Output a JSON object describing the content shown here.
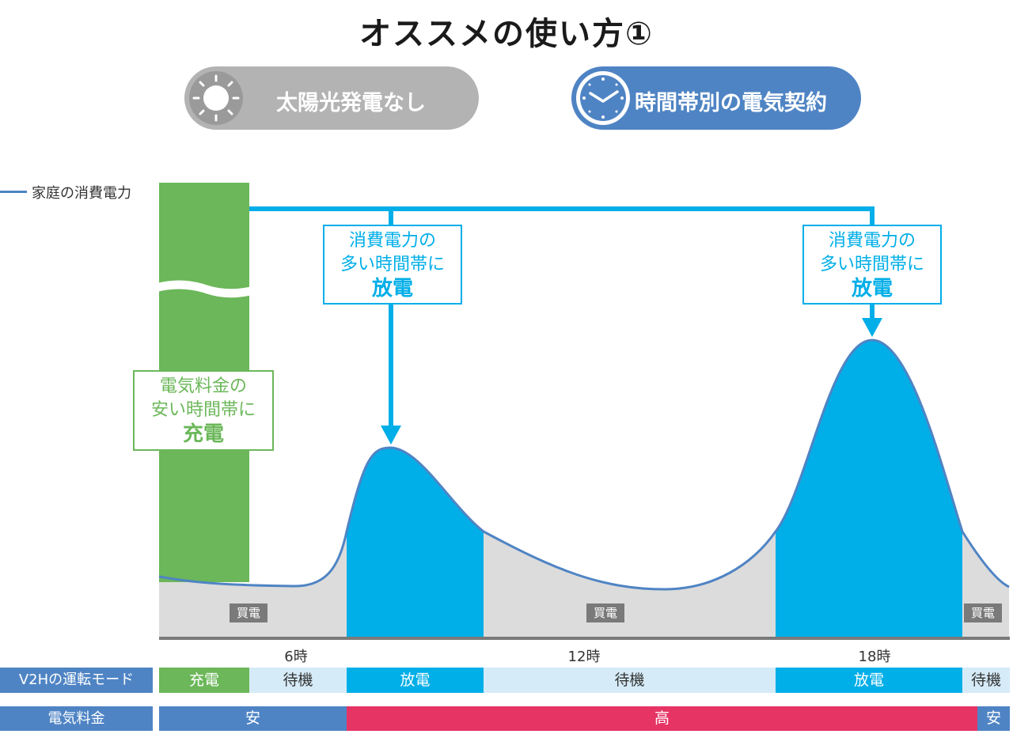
{
  "title": "オススメの使い方①",
  "badges": {
    "solar": {
      "label": "太陽光発電なし",
      "icon": "sun-icon"
    },
    "contract": {
      "label": "時間帯別の電気契約",
      "icon": "clock-icon"
    }
  },
  "legend": {
    "label": "家庭の消費電力"
  },
  "callouts": {
    "charge": {
      "line1": "電気料金の",
      "line2": "安い時間帯に",
      "emphasis": "充電"
    },
    "discharge": {
      "line1": "消費電力の",
      "line2": "多い時間帯に",
      "emphasis": "放電"
    }
  },
  "buy_label": "買電",
  "ticks": [
    "6時",
    "12時",
    "18時"
  ],
  "mode_row": {
    "label": "V2Hの運転モード",
    "segments": [
      "充電",
      "待機",
      "放電",
      "待機",
      "放電",
      "待機"
    ]
  },
  "price_row": {
    "label": "電気料金",
    "segments": [
      "安",
      "高",
      "安"
    ]
  },
  "colors": {
    "charge": "#6bb759",
    "discharge": "#00aee8",
    "standby": "#d6ebf8",
    "low_price": "#4f84c4",
    "high_price": "#e63465",
    "grid_area": "#dcdcdc",
    "demand_line": "#4f84c4",
    "solar_badge": "#b3b3b3",
    "contract_badge": "#4f84c4"
  }
}
